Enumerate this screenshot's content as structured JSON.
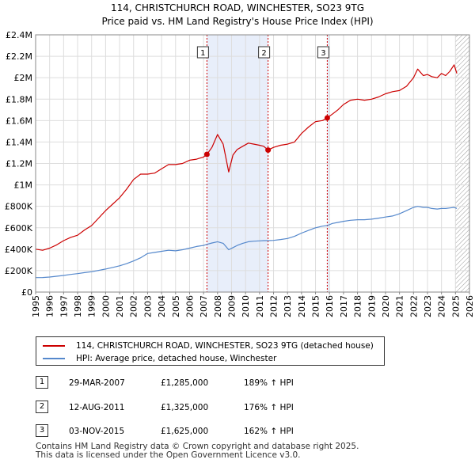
{
  "title": {
    "line1": "114, CHRISTCHURCH ROAD, WINCHESTER, SO23 9TG",
    "line2": "Price paid vs. HM Land Registry's House Price Index (HPI)"
  },
  "colors": {
    "property": "#cc0000",
    "hpi": "#5588cc",
    "shade": "#e8eefa",
    "hatch": "#999999",
    "grid": "#dddddd",
    "vline": "#cc0000"
  },
  "legend": {
    "property_label": "114, CHRISTCHURCH ROAD, WINCHESTER, SO23 9TG (detached house)",
    "hpi_label": "HPI: Average price, detached house, Winchester"
  },
  "sales": [
    {
      "num": "1",
      "date": "29-MAR-2007",
      "price": "£1,285,000",
      "hpi": "189% ↑ HPI"
    },
    {
      "num": "2",
      "date": "12-AUG-2011",
      "price": "£1,325,000",
      "hpi": "176% ↑ HPI"
    },
    {
      "num": "3",
      "date": "03-NOV-2015",
      "price": "£1,625,000",
      "hpi": "162% ↑ HPI"
    }
  ],
  "footer": {
    "line1": "Contains HM Land Registry data © Crown copyright and database right 2025.",
    "line2": "This data is licensed under the Open Government Licence v3.0."
  },
  "chart_data": {
    "type": "line",
    "title": "114, CHRISTCHURCH ROAD, WINCHESTER, SO23 9TG — Price paid vs. HM Land Registry's House Price Index (HPI)",
    "xlabel": "",
    "ylabel": "",
    "xlim": [
      1995,
      2026
    ],
    "ylim": [
      0,
      2400000
    ],
    "x_ticks": [
      1995,
      1996,
      1997,
      1998,
      1999,
      2000,
      2001,
      2002,
      2003,
      2004,
      2005,
      2006,
      2007,
      2008,
      2009,
      2010,
      2011,
      2012,
      2013,
      2014,
      2015,
      2016,
      2017,
      2018,
      2019,
      2020,
      2021,
      2022,
      2023,
      2024,
      2025,
      2026
    ],
    "y_ticks": [
      0,
      200000,
      400000,
      600000,
      800000,
      1000000,
      1200000,
      1400000,
      1600000,
      1800000,
      2000000,
      2200000,
      2400000
    ],
    "y_tick_labels": [
      "£0",
      "£200K",
      "£400K",
      "£600K",
      "£800K",
      "£1M",
      "£1.2M",
      "£1.4M",
      "£1.6M",
      "£1.8M",
      "£2M",
      "£2.2M",
      "£2.4M"
    ],
    "shaded_ranges": [
      [
        2007.24,
        2011.61
      ],
      [
        2015.84,
        2016.0
      ]
    ],
    "hatched_from": 2025.0,
    "series": [
      {
        "name": "114, CHRISTCHURCH ROAD, WINCHESTER, SO23 9TG (detached house)",
        "x": [
          1995.0,
          1995.5,
          1996.0,
          1996.5,
          1997.0,
          1997.5,
          1998.0,
          1998.5,
          1999.0,
          1999.5,
          2000.0,
          2000.5,
          2001.0,
          2001.5,
          2002.0,
          2002.5,
          2003.0,
          2003.5,
          2004.0,
          2004.5,
          2005.0,
          2005.5,
          2006.0,
          2006.5,
          2007.0,
          2007.24,
          2007.6,
          2008.0,
          2008.4,
          2008.8,
          2009.1,
          2009.4,
          2009.8,
          2010.2,
          2010.6,
          2011.0,
          2011.3,
          2011.61,
          2012.0,
          2012.5,
          2013.0,
          2013.5,
          2014.0,
          2014.5,
          2015.0,
          2015.5,
          2015.84,
          2016.2,
          2016.6,
          2017.0,
          2017.5,
          2018.0,
          2018.5,
          2019.0,
          2019.5,
          2020.0,
          2020.5,
          2021.0,
          2021.5,
          2022.0,
          2022.3,
          2022.7,
          2023.0,
          2023.3,
          2023.7,
          2024.0,
          2024.3,
          2024.6,
          2024.9,
          2025.1
        ],
        "values": [
          400000,
          390000,
          410000,
          440000,
          480000,
          510000,
          530000,
          580000,
          620000,
          690000,
          760000,
          820000,
          880000,
          960000,
          1050000,
          1100000,
          1100000,
          1110000,
          1150000,
          1190000,
          1190000,
          1200000,
          1230000,
          1240000,
          1260000,
          1285000,
          1350000,
          1470000,
          1380000,
          1120000,
          1280000,
          1330000,
          1360000,
          1390000,
          1380000,
          1370000,
          1360000,
          1325000,
          1350000,
          1370000,
          1380000,
          1400000,
          1480000,
          1540000,
          1590000,
          1600000,
          1625000,
          1660000,
          1700000,
          1750000,
          1790000,
          1800000,
          1790000,
          1800000,
          1820000,
          1850000,
          1870000,
          1880000,
          1920000,
          2000000,
          2080000,
          2020000,
          2030000,
          2010000,
          2000000,
          2040000,
          2020000,
          2060000,
          2120000,
          2040000
        ]
      },
      {
        "name": "HPI: Average price, detached house, Winchester",
        "x": [
          1995.0,
          1995.5,
          1996.0,
          1996.5,
          1997.0,
          1997.5,
          1998.0,
          1998.5,
          1999.0,
          1999.5,
          2000.0,
          2000.5,
          2001.0,
          2001.5,
          2002.0,
          2002.5,
          2003.0,
          2003.5,
          2004.0,
          2004.5,
          2005.0,
          2005.5,
          2006.0,
          2006.5,
          2007.0,
          2007.24,
          2007.6,
          2008.0,
          2008.4,
          2008.8,
          2009.1,
          2009.4,
          2009.8,
          2010.2,
          2010.6,
          2011.0,
          2011.3,
          2011.61,
          2012.0,
          2012.5,
          2013.0,
          2013.5,
          2014.0,
          2014.5,
          2015.0,
          2015.5,
          2015.84,
          2016.2,
          2016.6,
          2017.0,
          2017.5,
          2018.0,
          2018.5,
          2019.0,
          2019.5,
          2020.0,
          2020.5,
          2021.0,
          2021.5,
          2022.0,
          2022.3,
          2022.7,
          2023.0,
          2023.3,
          2023.7,
          2024.0,
          2024.3,
          2024.6,
          2024.9,
          2025.1
        ],
        "values": [
          135000,
          136000,
          140000,
          148000,
          155000,
          165000,
          172000,
          182000,
          190000,
          202000,
          215000,
          230000,
          245000,
          265000,
          290000,
          320000,
          360000,
          370000,
          380000,
          390000,
          385000,
          395000,
          410000,
          425000,
          435000,
          445000,
          458000,
          470000,
          455000,
          395000,
          415000,
          435000,
          455000,
          470000,
          475000,
          478000,
          480000,
          480000,
          482000,
          490000,
          500000,
          520000,
          550000,
          575000,
          600000,
          615000,
          620000,
          640000,
          650000,
          660000,
          670000,
          675000,
          675000,
          680000,
          690000,
          700000,
          710000,
          730000,
          760000,
          790000,
          800000,
          790000,
          790000,
          780000,
          775000,
          780000,
          780000,
          785000,
          790000,
          780000
        ]
      }
    ],
    "sale_markers": [
      {
        "label": "1",
        "x": 2007.24,
        "y": 1285000
      },
      {
        "label": "2",
        "x": 2011.61,
        "y": 1325000
      },
      {
        "label": "3",
        "x": 2015.84,
        "y": 1625000
      }
    ]
  }
}
